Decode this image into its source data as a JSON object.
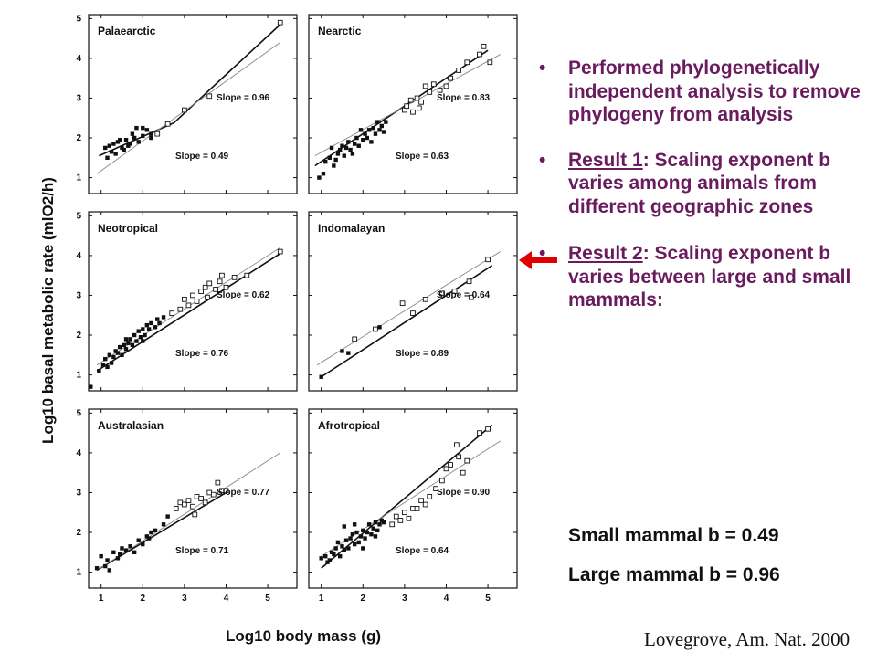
{
  "chart_data": {
    "type": "scatter",
    "ylabel": "Log10 basal metabolic rate (mlO2/h)",
    "xlabel": "Log10 body mass (g)",
    "xlim": [
      0.7,
      5.7
    ],
    "ylim": [
      0.6,
      5.1
    ],
    "xticks": [
      1,
      2,
      3,
      4,
      5
    ],
    "yticks": [
      1,
      2,
      3,
      4,
      5
    ],
    "panels": [
      {
        "title": "Palaearctic",
        "slope_labels": [
          "Slope = 0.96",
          "Slope = 0.49"
        ],
        "lines": [
          {
            "style": "bold",
            "x": [
              0.95,
              2.75
            ],
            "y": [
              1.55,
              2.38
            ]
          },
          {
            "style": "bold",
            "x": [
              2.75,
              5.3
            ],
            "y": [
              2.38,
              4.85
            ]
          },
          {
            "style": "thin",
            "x": [
              0.9,
              5.3
            ],
            "y": [
              1.1,
              4.4
            ]
          }
        ],
        "filled": [
          [
            1.1,
            1.75
          ],
          [
            1.2,
            1.8
          ],
          [
            1.3,
            1.85
          ],
          [
            1.25,
            1.65
          ],
          [
            1.4,
            1.9
          ],
          [
            1.5,
            1.75
          ],
          [
            1.6,
            1.95
          ],
          [
            1.7,
            1.85
          ],
          [
            1.8,
            2.0
          ],
          [
            1.9,
            1.9
          ],
          [
            2.0,
            2.05
          ],
          [
            1.55,
            1.7
          ],
          [
            1.65,
            1.8
          ],
          [
            1.75,
            2.1
          ],
          [
            1.35,
            1.6
          ],
          [
            1.85,
            2.25
          ],
          [
            2.0,
            2.25
          ],
          [
            2.1,
            2.2
          ],
          [
            1.15,
            1.5
          ],
          [
            1.45,
            1.95
          ],
          [
            2.2,
            2.0
          ],
          [
            2.2,
            2.1
          ]
        ],
        "open": [
          [
            2.35,
            2.1
          ],
          [
            2.6,
            2.35
          ],
          [
            3.0,
            2.7
          ],
          [
            3.6,
            3.05
          ],
          [
            5.3,
            4.9
          ]
        ]
      },
      {
        "title": "Nearctic",
        "slope_labels": [
          "Slope = 0.83",
          "Slope = 0.63"
        ],
        "lines": [
          {
            "style": "bold",
            "x": [
              0.85,
              5.0
            ],
            "y": [
              1.3,
              4.2
            ]
          },
          {
            "style": "thin",
            "x": [
              0.85,
              5.3
            ],
            "y": [
              1.55,
              4.1
            ]
          }
        ],
        "filled": [
          [
            0.95,
            1.0
          ],
          [
            1.05,
            1.1
          ],
          [
            1.1,
            1.4
          ],
          [
            1.2,
            1.5
          ],
          [
            1.25,
            1.75
          ],
          [
            1.3,
            1.3
          ],
          [
            1.4,
            1.6
          ],
          [
            1.5,
            1.8
          ],
          [
            1.55,
            1.55
          ],
          [
            1.6,
            1.75
          ],
          [
            1.65,
            1.9
          ],
          [
            1.7,
            1.7
          ],
          [
            1.8,
            1.85
          ],
          [
            1.85,
            2.0
          ],
          [
            1.9,
            1.8
          ],
          [
            2.0,
            1.95
          ],
          [
            2.05,
            2.1
          ],
          [
            2.1,
            2.0
          ],
          [
            2.15,
            2.2
          ],
          [
            2.2,
            1.9
          ],
          [
            2.25,
            2.25
          ],
          [
            2.3,
            2.1
          ],
          [
            2.4,
            2.2
          ],
          [
            2.45,
            2.3
          ],
          [
            2.5,
            2.15
          ],
          [
            2.55,
            2.4
          ],
          [
            1.35,
            1.45
          ],
          [
            1.45,
            1.7
          ],
          [
            1.75,
            1.6
          ],
          [
            1.95,
            2.2
          ],
          [
            2.35,
            2.4
          ]
        ],
        "open": [
          [
            3.0,
            2.7
          ],
          [
            3.05,
            2.8
          ],
          [
            3.15,
            2.95
          ],
          [
            3.2,
            2.65
          ],
          [
            3.3,
            3.0
          ],
          [
            3.4,
            2.9
          ],
          [
            3.5,
            3.3
          ],
          [
            3.6,
            3.15
          ],
          [
            3.7,
            3.35
          ],
          [
            3.85,
            3.2
          ],
          [
            4.0,
            3.3
          ],
          [
            4.1,
            3.5
          ],
          [
            4.3,
            3.7
          ],
          [
            4.5,
            3.9
          ],
          [
            4.8,
            4.1
          ],
          [
            4.9,
            4.3
          ],
          [
            5.05,
            3.9
          ],
          [
            3.35,
            2.75
          ]
        ]
      },
      {
        "title": "Neotropical",
        "slope_labels": [
          "Slope = 0.62",
          "Slope = 0.76"
        ],
        "lines": [
          {
            "style": "bold",
            "x": [
              0.9,
              5.3
            ],
            "y": [
              1.1,
              4.05
            ]
          },
          {
            "style": "thin",
            "x": [
              0.9,
              5.3
            ],
            "y": [
              1.25,
              4.2
            ]
          }
        ],
        "filled": [
          [
            0.75,
            0.7
          ],
          [
            0.95,
            1.1
          ],
          [
            1.05,
            1.25
          ],
          [
            1.1,
            1.4
          ],
          [
            1.15,
            1.2
          ],
          [
            1.2,
            1.5
          ],
          [
            1.3,
            1.45
          ],
          [
            1.35,
            1.6
          ],
          [
            1.4,
            1.55
          ],
          [
            1.45,
            1.7
          ],
          [
            1.5,
            1.5
          ],
          [
            1.55,
            1.75
          ],
          [
            1.6,
            1.65
          ],
          [
            1.65,
            1.8
          ],
          [
            1.7,
            1.9
          ],
          [
            1.75,
            1.75
          ],
          [
            1.8,
            2.0
          ],
          [
            1.85,
            1.85
          ],
          [
            1.9,
            2.1
          ],
          [
            1.95,
            1.95
          ],
          [
            2.0,
            2.15
          ],
          [
            2.05,
            2.0
          ],
          [
            2.1,
            2.25
          ],
          [
            2.15,
            2.15
          ],
          [
            2.2,
            2.3
          ],
          [
            2.3,
            2.2
          ],
          [
            2.35,
            2.4
          ],
          [
            2.4,
            2.3
          ],
          [
            2.5,
            2.45
          ],
          [
            1.25,
            1.3
          ],
          [
            1.6,
            1.9
          ],
          [
            2.0,
            1.85
          ]
        ],
        "open": [
          [
            2.7,
            2.55
          ],
          [
            2.9,
            2.65
          ],
          [
            3.0,
            2.9
          ],
          [
            3.1,
            2.75
          ],
          [
            3.2,
            3.0
          ],
          [
            3.3,
            2.85
          ],
          [
            3.4,
            3.1
          ],
          [
            3.5,
            3.2
          ],
          [
            3.6,
            3.3
          ],
          [
            3.75,
            3.15
          ],
          [
            3.9,
            3.5
          ],
          [
            4.0,
            3.2
          ],
          [
            4.2,
            3.45
          ],
          [
            4.5,
            3.5
          ],
          [
            5.3,
            4.1
          ],
          [
            3.55,
            2.95
          ],
          [
            3.85,
            3.35
          ]
        ]
      },
      {
        "title": "Indomalayan",
        "slope_labels": [
          "Slope = 0.64",
          "Slope = 0.89"
        ],
        "lines": [
          {
            "style": "bold",
            "x": [
              1.0,
              5.1
            ],
            "y": [
              0.95,
              3.75
            ]
          },
          {
            "style": "thin",
            "x": [
              0.9,
              5.3
            ],
            "y": [
              1.25,
              4.1
            ]
          }
        ],
        "filled": [
          [
            1.0,
            0.95
          ],
          [
            1.5,
            1.6
          ],
          [
            1.65,
            1.55
          ],
          [
            2.4,
            2.2
          ]
        ],
        "open": [
          [
            1.8,
            1.9
          ],
          [
            2.3,
            2.15
          ],
          [
            2.95,
            2.8
          ],
          [
            3.2,
            2.55
          ],
          [
            3.5,
            2.9
          ],
          [
            3.9,
            3.05
          ],
          [
            4.2,
            3.1
          ],
          [
            4.55,
            3.35
          ],
          [
            5.0,
            3.9
          ],
          [
            4.6,
            2.95
          ]
        ]
      },
      {
        "title": "Australasian",
        "slope_labels": [
          "Slope = 0.77",
          "Slope = 0.71"
        ],
        "lines": [
          {
            "style": "bold",
            "x": [
              0.9,
              4.0
            ],
            "y": [
              1.05,
              3.0
            ]
          },
          {
            "style": "thin",
            "x": [
              0.9,
              5.3
            ],
            "y": [
              1.05,
              4.0
            ]
          }
        ],
        "filled": [
          [
            0.9,
            1.1
          ],
          [
            1.0,
            1.4
          ],
          [
            1.15,
            1.3
          ],
          [
            1.2,
            1.05
          ],
          [
            1.3,
            1.5
          ],
          [
            1.4,
            1.35
          ],
          [
            1.5,
            1.6
          ],
          [
            1.6,
            1.55
          ],
          [
            1.7,
            1.65
          ],
          [
            1.8,
            1.5
          ],
          [
            1.9,
            1.8
          ],
          [
            2.0,
            1.7
          ],
          [
            2.1,
            1.9
          ],
          [
            2.2,
            2.0
          ],
          [
            2.3,
            2.05
          ],
          [
            2.5,
            2.2
          ],
          [
            2.6,
            2.4
          ],
          [
            1.1,
            1.15
          ],
          [
            1.45,
            1.45
          ],
          [
            2.15,
            1.85
          ]
        ],
        "open": [
          [
            2.8,
            2.6
          ],
          [
            2.9,
            2.75
          ],
          [
            3.0,
            2.7
          ],
          [
            3.1,
            2.8
          ],
          [
            3.2,
            2.65
          ],
          [
            3.3,
            2.9
          ],
          [
            3.4,
            2.85
          ],
          [
            3.5,
            2.75
          ],
          [
            3.6,
            3.0
          ],
          [
            3.7,
            2.95
          ],
          [
            3.8,
            3.25
          ],
          [
            3.9,
            3.05
          ],
          [
            4.0,
            3.05
          ],
          [
            3.25,
            2.45
          ]
        ]
      },
      {
        "title": "Afrotropical",
        "slope_labels": [
          "Slope = 0.90",
          "Slope = 0.64"
        ],
        "lines": [
          {
            "style": "bold",
            "x": [
              1.0,
              5.1
            ],
            "y": [
              1.1,
              4.7
            ]
          },
          {
            "style": "thin",
            "x": [
              1.0,
              5.3
            ],
            "y": [
              1.4,
              4.3
            ]
          }
        ],
        "filled": [
          [
            1.0,
            1.35
          ],
          [
            1.1,
            1.4
          ],
          [
            1.2,
            1.3
          ],
          [
            1.25,
            1.5
          ],
          [
            1.3,
            1.45
          ],
          [
            1.35,
            1.6
          ],
          [
            1.4,
            1.75
          ],
          [
            1.45,
            1.4
          ],
          [
            1.5,
            1.65
          ],
          [
            1.55,
            1.55
          ],
          [
            1.6,
            1.8
          ],
          [
            1.65,
            1.6
          ],
          [
            1.7,
            1.85
          ],
          [
            1.75,
            1.95
          ],
          [
            1.8,
            1.7
          ],
          [
            1.85,
            2.0
          ],
          [
            1.9,
            1.75
          ],
          [
            1.95,
            1.9
          ],
          [
            2.0,
            2.05
          ],
          [
            2.05,
            1.85
          ],
          [
            2.1,
            2.0
          ],
          [
            2.15,
            2.2
          ],
          [
            2.2,
            1.95
          ],
          [
            2.25,
            2.1
          ],
          [
            2.3,
            2.25
          ],
          [
            2.35,
            2.05
          ],
          [
            2.4,
            2.2
          ],
          [
            2.45,
            2.3
          ],
          [
            2.5,
            2.25
          ],
          [
            1.15,
            1.25
          ],
          [
            1.55,
            2.15
          ],
          [
            2.0,
            1.6
          ],
          [
            1.8,
            2.2
          ],
          [
            2.3,
            1.9
          ]
        ],
        "open": [
          [
            2.7,
            2.2
          ],
          [
            2.8,
            2.4
          ],
          [
            2.9,
            2.3
          ],
          [
            3.0,
            2.5
          ],
          [
            3.1,
            2.35
          ],
          [
            3.2,
            2.6
          ],
          [
            3.4,
            2.8
          ],
          [
            3.5,
            2.7
          ],
          [
            3.6,
            2.9
          ],
          [
            3.75,
            3.1
          ],
          [
            3.9,
            3.3
          ],
          [
            4.0,
            3.6
          ],
          [
            4.1,
            3.7
          ],
          [
            4.3,
            3.9
          ],
          [
            4.4,
            3.5
          ],
          [
            4.5,
            3.8
          ],
          [
            4.8,
            4.5
          ],
          [
            5.0,
            4.6
          ],
          [
            3.3,
            2.6
          ],
          [
            4.25,
            4.2
          ]
        ]
      }
    ]
  },
  "bullets": [
    {
      "pre": "",
      "u": "",
      "post": "Performed phylogenetically independent analysis to remove phylogeny from analysis"
    },
    {
      "pre": "",
      "u": "Result 1",
      "post": ":  Scaling exponent b varies among animals from different geographic zones"
    },
    {
      "pre": "",
      "u": "Result 2",
      "post": ": Scaling exponent b varies between large and small mammals:"
    }
  ],
  "sub_lines": [
    "Small mammal b = 0.49",
    "Large mammal b = 0.96"
  ],
  "citation": "Lovegrove, Am. Nat. 2000",
  "colors": {
    "bullet_text": "#6a1b5e",
    "arrow": "#e00000"
  }
}
